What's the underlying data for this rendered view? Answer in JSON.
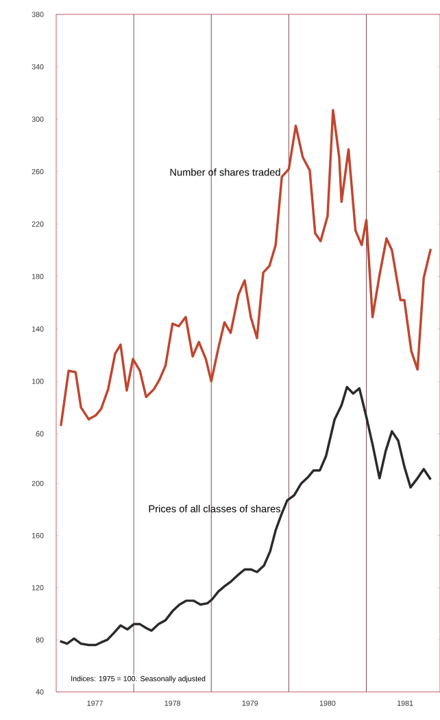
{
  "chart_data": {
    "type": "line",
    "xlim": [
      1977,
      1981.95
    ],
    "ylim": [
      -137,
      380
    ],
    "y2lim": [
      40,
      560
    ],
    "xticks": [
      {
        "value": 1977.5,
        "label": "1977"
      },
      {
        "value": 1978.5,
        "label": "1978"
      },
      {
        "value": 1979.5,
        "label": "1979"
      },
      {
        "value": 1980.5,
        "label": "1980"
      },
      {
        "value": 1981.5,
        "label": "1981"
      }
    ],
    "yticks": [
      60,
      100,
      140,
      180,
      220,
      260,
      300,
      340,
      380
    ],
    "y2ticks": [
      40,
      80,
      120,
      160,
      200
    ],
    "ref_lines": [
      {
        "axis": "x",
        "value": 1978,
        "color": "#7a3a42"
      },
      {
        "axis": "x",
        "value": 1979,
        "color": "#7a3a42"
      },
      {
        "axis": "x",
        "value": 1980,
        "color": "#7a3a42"
      },
      {
        "axis": "x",
        "value": 1981,
        "color": "#7a3a42"
      }
    ],
    "annotations": [
      "Indices: 1975 = 100. Seasonally adjusted"
    ],
    "series": [
      {
        "name": "Number of shares traded",
        "color": "#c0462f",
        "x": [
          1977.06,
          1977.16,
          1977.25,
          1977.32,
          1977.42,
          1977.51,
          1977.58,
          1977.67,
          1977.76,
          1977.83,
          1977.91,
          1977.99,
          1978.08,
          1978.16,
          1978.26,
          1978.33,
          1978.41,
          1978.5,
          1978.58,
          1978.67,
          1978.76,
          1978.84,
          1978.93,
          1979.0,
          1979.09,
          1979.17,
          1979.25,
          1979.35,
          1979.43,
          1979.51,
          1979.59,
          1979.67,
          1979.75,
          1979.83,
          1979.91,
          1980.0,
          1980.09,
          1980.18,
          1980.27,
          1980.34,
          1980.41,
          1980.5,
          1980.57,
          1980.65,
          1980.68,
          1980.77,
          1980.86,
          1980.94,
          1981.0,
          1981.08,
          1981.17,
          1981.26,
          1981.33,
          1981.44,
          1981.49,
          1981.58,
          1981.66,
          1981.74,
          1981.83
        ],
        "values": [
          66,
          108,
          107,
          80,
          71,
          74,
          79,
          94,
          121,
          128,
          93,
          117,
          108,
          88,
          94,
          101,
          112,
          144,
          142,
          149,
          119,
          130,
          117,
          100,
          125,
          145,
          137,
          166,
          177,
          149,
          133,
          183,
          188,
          204,
          256,
          262,
          295,
          271,
          261,
          213,
          207,
          226,
          307,
          271,
          237,
          277,
          215,
          204,
          223,
          149,
          181,
          209,
          200,
          162,
          162,
          123,
          109,
          179,
          201
        ]
      },
      {
        "name": "Prices of all classes of shares",
        "color": "#2a2a2a",
        "axis": "y2",
        "x": [
          1977.05,
          1977.14,
          1977.23,
          1977.32,
          1977.42,
          1977.51,
          1977.58,
          1977.66,
          1977.74,
          1977.83,
          1977.92,
          1978.0,
          1978.08,
          1978.16,
          1978.23,
          1978.32,
          1978.41,
          1978.5,
          1978.59,
          1978.68,
          1978.77,
          1978.86,
          1978.95,
          1979.01,
          1979.09,
          1979.17,
          1979.26,
          1979.35,
          1979.43,
          1979.51,
          1979.59,
          1979.68,
          1979.76,
          1979.83,
          1979.91,
          1979.98,
          1980.07,
          1980.16,
          1980.25,
          1980.32,
          1980.4,
          1980.48,
          1980.59,
          1980.68,
          1980.75,
          1980.83,
          1980.91,
          1981.0,
          1981.08,
          1981.17,
          1981.25,
          1981.33,
          1981.41,
          1981.49,
          1981.57,
          1981.66,
          1981.74,
          1981.83
        ],
        "values": [
          79,
          77,
          81,
          77,
          76,
          76,
          78,
          80,
          85,
          91,
          88,
          92,
          92,
          89,
          87,
          92,
          95,
          102,
          107,
          110,
          110,
          107,
          108,
          111,
          117,
          121,
          125,
          130,
          134,
          134,
          132,
          137,
          148,
          164,
          177,
          187,
          191,
          200,
          205,
          210,
          210,
          221,
          249,
          260,
          274,
          269,
          273,
          251,
          230,
          204,
          225,
          240,
          233,
          213,
          197,
          204,
          211,
          203
        ]
      }
    ]
  }
}
